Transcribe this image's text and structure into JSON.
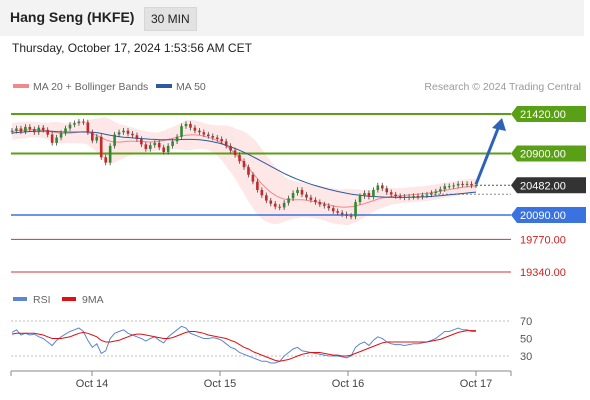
{
  "header": {
    "title": "Hang Seng (HKFE)",
    "timeframe": "30 MIN",
    "datetime": "Thursday, October 17, 2024 1:53:56 AM CET"
  },
  "legend": {
    "items": [
      {
        "name": "MA 20 + Bollinger Bands",
        "color": "#f08a8a"
      },
      {
        "name": "MA 50",
        "color": "#2c5aa0"
      }
    ],
    "source": "Research © 2024 Trading Central"
  },
  "rsi_legend": {
    "items": [
      {
        "name": "RSI",
        "color": "#5b86d6"
      },
      {
        "name": "9MA",
        "color": "#e01010"
      }
    ]
  },
  "chart_data": [
    {
      "type": "candlestick",
      "ylim": [
        19150,
        21550
      ],
      "current_price": {
        "value": 20482.0,
        "label": "20482.00"
      },
      "levels": [
        {
          "value": 21420.0,
          "label": "21420.00",
          "kind": "resistance",
          "color": "#5aa016"
        },
        {
          "value": 20900.0,
          "label": "20900.00",
          "kind": "resistance",
          "color": "#5aa016"
        },
        {
          "value": 20090.0,
          "label": "20090.00",
          "kind": "support",
          "color": "#3a72e0"
        },
        {
          "value": 19770.0,
          "label": "19770.00",
          "kind": "support",
          "color": "#d83030"
        },
        {
          "value": 19340.0,
          "label": "19340.00",
          "kind": "support",
          "color": "#d83030"
        }
      ],
      "forecast_arrow": {
        "from": 20482,
        "to": 21420,
        "color": "#2e62b8"
      },
      "x_ticks": [
        "Oct 14",
        "Oct 15",
        "Oct 16",
        "Oct 17"
      ],
      "close": [
        21200,
        21230,
        21190,
        21250,
        21220,
        21180,
        21240,
        21210,
        21150,
        21040,
        21110,
        21170,
        21230,
        21280,
        21300,
        21320,
        21310,
        21180,
        21070,
        21120,
        20850,
        20780,
        21000,
        21150,
        21180,
        21200,
        21160,
        21140,
        21090,
        21020,
        20960,
        21010,
        21040,
        20980,
        20920,
        21000,
        21060,
        21120,
        21260,
        21290,
        21240,
        21200,
        21180,
        21150,
        21130,
        21110,
        21090,
        21060,
        21000,
        20940,
        20880,
        20800,
        20720,
        20620,
        20530,
        20420,
        20350,
        20280,
        20240,
        20200,
        20190,
        20250,
        20310,
        20380,
        20420,
        20360,
        20320,
        20290,
        20260,
        20230,
        20210,
        20180,
        20140,
        20120,
        20100,
        20080,
        20070,
        20260,
        20340,
        20380,
        20330,
        20420,
        20480,
        20440,
        20390,
        20360,
        20340,
        20330,
        20320,
        20330,
        20340,
        20330,
        20350,
        20360,
        20380,
        20400,
        20430,
        20470,
        20470,
        20480,
        20500,
        20490,
        20500,
        20480,
        20482
      ],
      "open": [
        21190,
        21200,
        21230,
        21190,
        21250,
        21220,
        21180,
        21240,
        21210,
        21150,
        21040,
        21110,
        21170,
        21230,
        21280,
        21300,
        21320,
        21310,
        21180,
        21070,
        21120,
        20850,
        20780,
        21000,
        21150,
        21180,
        21200,
        21160,
        21140,
        21090,
        21020,
        20960,
        21010,
        21040,
        20980,
        20920,
        21000,
        21060,
        21120,
        21260,
        21290,
        21240,
        21200,
        21180,
        21150,
        21130,
        21110,
        21090,
        21060,
        21000,
        20940,
        20880,
        20800,
        20720,
        20620,
        20530,
        20420,
        20350,
        20280,
        20240,
        20200,
        20190,
        20250,
        20310,
        20380,
        20420,
        20360,
        20320,
        20290,
        20260,
        20230,
        20210,
        20180,
        20140,
        20120,
        20100,
        20080,
        20070,
        20260,
        20340,
        20380,
        20330,
        20420,
        20480,
        20440,
        20390,
        20360,
        20340,
        20330,
        20320,
        20330,
        20340,
        20330,
        20350,
        20360,
        20380,
        20400,
        20430,
        20470,
        20470,
        20480,
        20500,
        20490,
        20500,
        20480
      ],
      "ma20": [
        21190,
        21200,
        21205,
        21210,
        21215,
        21215,
        21212,
        21205,
        21195,
        21185,
        21175,
        21168,
        21165,
        21168,
        21175,
        21182,
        21185,
        21175,
        21160,
        21140,
        21110,
        21080,
        21060,
        21050,
        21050,
        21055,
        21060,
        21062,
        21062,
        21060,
        21055,
        21052,
        21055,
        21060,
        21070,
        21085,
        21100,
        21115,
        21130,
        21140,
        21145,
        21145,
        21140,
        21130,
        21115,
        21095,
        21070,
        21040,
        21000,
        20955,
        20900,
        20840,
        20780,
        20710,
        20640,
        20570,
        20500,
        20440,
        20390,
        20350,
        20320,
        20300,
        20290,
        20290,
        20290,
        20290,
        20285,
        20275,
        20265,
        20255,
        20240,
        20225,
        20210,
        20200,
        20195,
        20195,
        20200,
        20210,
        20225,
        20240,
        20260,
        20280,
        20300,
        20315,
        20325,
        20335,
        20340,
        20345,
        20350,
        20355,
        20360,
        20365,
        20370,
        20375,
        20385,
        20395,
        20405,
        20415,
        20425,
        20435,
        20445,
        20455,
        20462,
        20468,
        20472
      ],
      "ma50": [
        21170,
        21175,
        21180,
        21185,
        21190,
        21192,
        21194,
        21195,
        21195,
        21192,
        21188,
        21185,
        21183,
        21182,
        21182,
        21183,
        21184,
        21183,
        21180,
        21175,
        21165,
        21152,
        21140,
        21130,
        21122,
        21115,
        21110,
        21105,
        21100,
        21096,
        21092,
        21088,
        21085,
        21082,
        21080,
        21080,
        21080,
        21082,
        21084,
        21086,
        21086,
        21084,
        21080,
        21074,
        21066,
        21055,
        21042,
        21026,
        21008,
        20988,
        20966,
        20942,
        20916,
        20888,
        20858,
        20828,
        20796,
        20764,
        20732,
        20700,
        20668,
        20638,
        20610,
        20584,
        20560,
        20538,
        20516,
        20496,
        20478,
        20460,
        20444,
        20428,
        20414,
        20400,
        20388,
        20376,
        20366,
        20358,
        20350,
        20344,
        20338,
        20334,
        20330,
        20327,
        20325,
        20323,
        20322,
        20322,
        20322,
        20323,
        20324,
        20326,
        20328,
        20331,
        20335,
        20340,
        20345,
        20350,
        20356,
        20362,
        20368,
        20374,
        20380,
        20386,
        20392
      ],
      "bb_width": [
        110,
        110,
        110,
        110,
        105,
        100,
        100,
        100,
        110,
        130,
        140,
        140,
        130,
        130,
        140,
        150,
        150,
        160,
        190,
        220,
        260,
        300,
        290,
        270,
        240,
        220,
        200,
        180,
        160,
        150,
        140,
        130,
        120,
        120,
        130,
        140,
        150,
        160,
        180,
        200,
        200,
        190,
        180,
        170,
        170,
        180,
        200,
        230,
        270,
        300,
        330,
        370,
        410,
        440,
        460,
        470,
        460,
        440,
        410,
        380,
        340,
        300,
        270,
        250,
        240,
        230,
        220,
        220,
        220,
        220,
        220,
        230,
        230,
        230,
        230,
        240,
        230,
        220,
        200,
        180,
        160,
        150,
        140,
        130,
        120,
        110,
        105,
        100,
        100,
        100,
        100,
        100,
        100,
        100,
        100,
        100,
        100,
        100,
        100,
        100,
        100,
        100,
        100,
        100,
        100
      ]
    },
    {
      "type": "line",
      "name_rsi": "RSI",
      "name_ma": "9MA",
      "ylim": [
        20,
        80
      ],
      "y_ticks": [
        70,
        50,
        30
      ],
      "rsi": [
        57,
        60,
        54,
        56,
        54,
        55,
        52,
        50,
        46,
        42,
        48,
        52,
        55,
        58,
        60,
        62,
        58,
        48,
        40,
        44,
        33,
        36,
        50,
        56,
        58,
        60,
        56,
        54,
        52,
        50,
        47,
        50,
        52,
        48,
        45,
        52,
        56,
        60,
        64,
        62,
        56,
        54,
        52,
        50,
        50,
        51,
        50,
        48,
        44,
        40,
        38,
        34,
        32,
        30,
        28,
        26,
        24,
        24,
        22,
        22,
        24,
        30,
        34,
        38,
        40,
        36,
        35,
        34,
        33,
        32,
        31,
        30,
        30,
        30,
        29,
        28,
        30,
        40,
        44,
        46,
        42,
        48,
        52,
        50,
        46,
        44,
        43,
        43,
        42,
        43,
        44,
        44,
        45,
        46,
        48,
        50,
        54,
        58,
        58,
        60,
        62,
        60,
        60,
        58,
        58
      ],
      "ma9": [
        55,
        56,
        56,
        56,
        56,
        56,
        55,
        54,
        52,
        50,
        50,
        50,
        51,
        52,
        54,
        56,
        57,
        56,
        54,
        52,
        48,
        46,
        46,
        47,
        48,
        50,
        52,
        54,
        55,
        55,
        54,
        53,
        52,
        51,
        50,
        50,
        51,
        53,
        55,
        57,
        58,
        58,
        57,
        56,
        54,
        53,
        52,
        51,
        50,
        48,
        46,
        43,
        40,
        38,
        35,
        33,
        31,
        29,
        27,
        25,
        24,
        25,
        26,
        28,
        30,
        32,
        33,
        34,
        34,
        34,
        33,
        32,
        31,
        31,
        30,
        30,
        31,
        33,
        35,
        37,
        39,
        41,
        43,
        45,
        46,
        46,
        46,
        46,
        46,
        46,
        46,
        46,
        46,
        46,
        47,
        48,
        49,
        51,
        53,
        55,
        57,
        58,
        59,
        59,
        59
      ]
    }
  ]
}
